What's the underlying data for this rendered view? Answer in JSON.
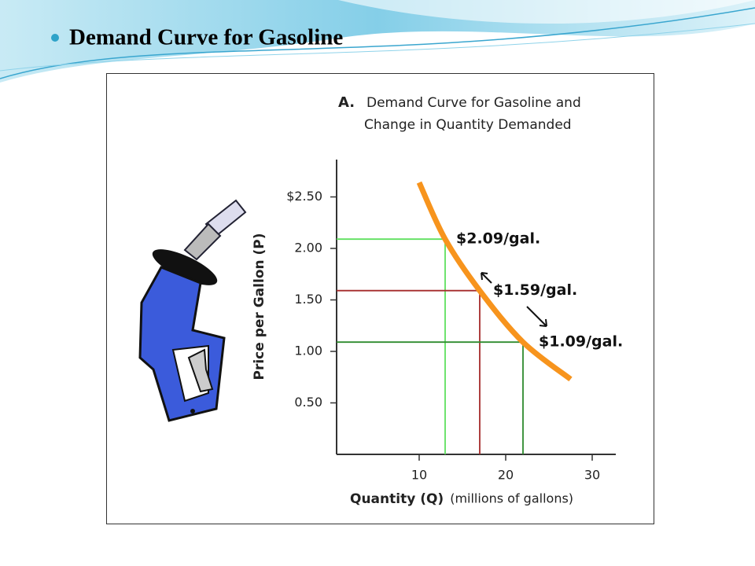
{
  "slide": {
    "title": "Demand Curve for Gasoline"
  },
  "chart_data": {
    "type": "line",
    "panel_label": "A.",
    "title": "Demand Curve for Gasoline and Change in Quantity Demanded",
    "ylabel": "Price per Gallon (P)",
    "xlabel": "Quantity (Q)",
    "xlabel_note": "(millions of gallons)",
    "xlim": [
      0,
      33
    ],
    "ylim": [
      0,
      2.86
    ],
    "xticks": [
      10,
      20,
      30
    ],
    "yticks": [
      {
        "value": 2.5,
        "label": "$2.50"
      },
      {
        "value": 2,
        "label": "2.00"
      },
      {
        "value": 1.5,
        "label": "1.50"
      },
      {
        "value": 1,
        "label": "1.00"
      },
      {
        "value": 0.5,
        "label": "0.50"
      }
    ],
    "series": [
      {
        "color": "#f7941d",
        "x": [
          10,
          13,
          17,
          22,
          27.5
        ],
        "values": [
          2.64,
          2.09,
          1.59,
          1.09,
          0.73
        ]
      }
    ],
    "points": {
      "x": [
        13,
        17,
        22
      ],
      "values": [
        2.09,
        1.59,
        1.09
      ],
      "value_labels": [
        "$2.09/gal.",
        "$1.59/gal.",
        "$1.09/gal."
      ],
      "colors": [
        "#5fe05f",
        "#a52a2a",
        "#2e8b2e"
      ]
    }
  }
}
